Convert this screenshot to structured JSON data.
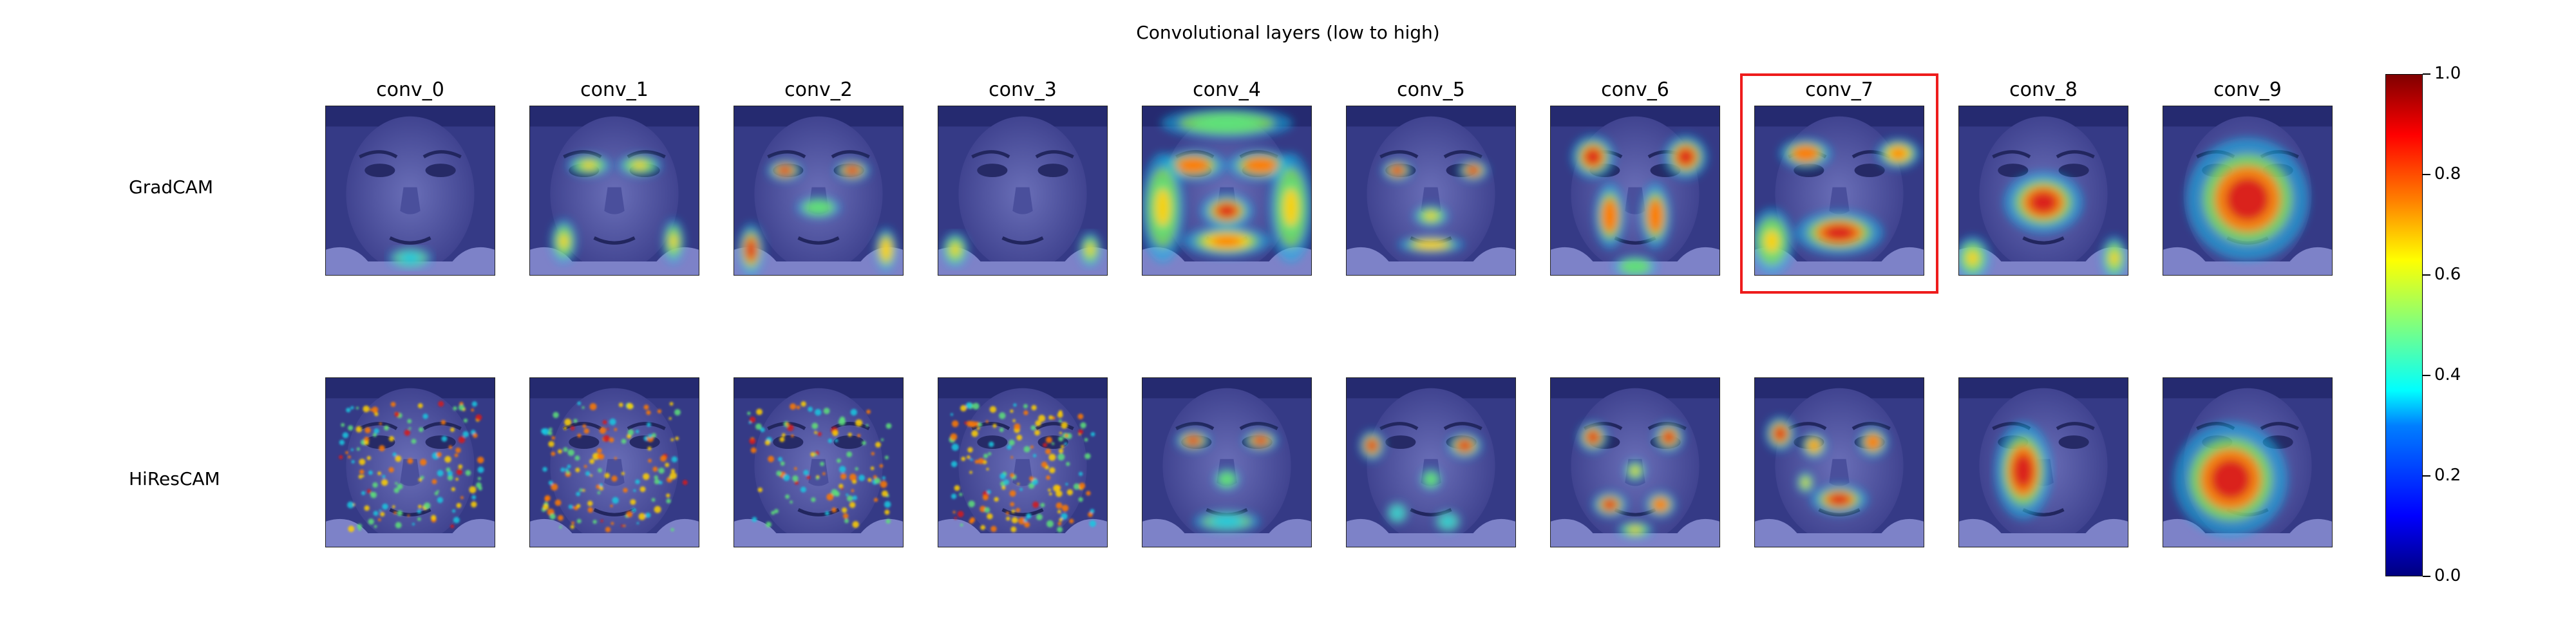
{
  "figure": {
    "title": "Convolutional layers (low to high)",
    "rows": [
      {
        "key": "gradcam",
        "label": "GradCAM"
      },
      {
        "key": "hirescam",
        "label": "HiResCAM"
      }
    ],
    "columns": [
      "conv_0",
      "conv_1",
      "conv_2",
      "conv_3",
      "conv_4",
      "conv_5",
      "conv_6",
      "conv_7",
      "conv_8",
      "conv_9"
    ],
    "highlighted_column": "conv_7",
    "highlight_color": "#ee1c1c",
    "colormap": "jet",
    "colorbar": {
      "min": 0.0,
      "max": 1.0,
      "ticks": [
        "0.0",
        "0.2",
        "0.4",
        "0.6",
        "0.8",
        "1.0"
      ]
    }
  }
}
